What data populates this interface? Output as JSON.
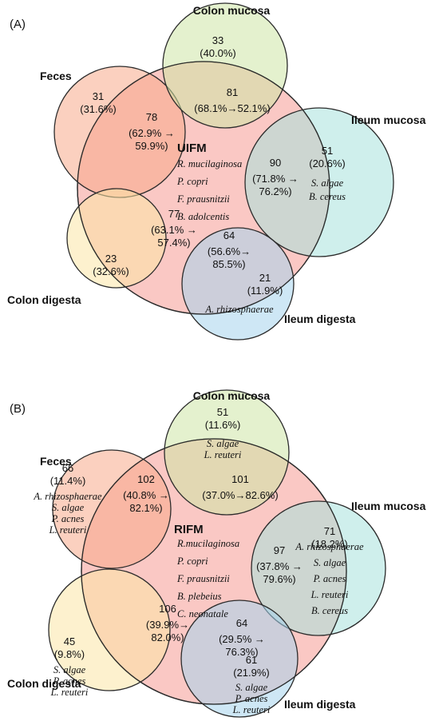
{
  "panels": [
    {
      "panel_label": "(A)",
      "core": {
        "label": "UIFM",
        "species": [
          "R. mucilaginosa",
          "P. copri",
          "F. prausnitzii",
          "B. adolcentis"
        ]
      },
      "sets": [
        {
          "name": "Feces",
          "color": "#f7a98a",
          "unique_count": "31",
          "unique_percent": "(31.6%)",
          "species": []
        },
        {
          "name": "Colon mucosa",
          "color": "#cde6a6",
          "unique_count": "33",
          "unique_percent": "(40.0%)",
          "species": []
        },
        {
          "name": "Ileum mucosa",
          "color": "#a8e2dc",
          "unique_count": "51",
          "unique_percent": "(20.6%)",
          "species": [
            "S. algae",
            "B. cereus"
          ]
        },
        {
          "name": "Ileum digesta",
          "color": "#a6d4ec",
          "unique_count": "21",
          "unique_percent": "(11.9%)",
          "species": [
            "A. rhizosphaerae"
          ]
        },
        {
          "name": "Colon digesta",
          "color": "#fbe5a5",
          "unique_count": "23",
          "unique_percent": "(32.6%)",
          "species": []
        }
      ],
      "overlaps": [
        {
          "count": "78",
          "lines": [
            "(62.9% →",
            "59.9%)"
          ]
        },
        {
          "count": "81",
          "lines": [
            "(68.1%→52.1%)"
          ]
        },
        {
          "count": "90",
          "lines": [
            "(71.8% →",
            "76.2%)"
          ]
        },
        {
          "count": "64",
          "lines": [
            "(56.6%→",
            "85.5%)"
          ]
        },
        {
          "count": "77",
          "lines": [
            "(63.1% →",
            "57.4%)"
          ]
        }
      ]
    },
    {
      "panel_label": "(B)",
      "core": {
        "label": "RIFM",
        "species": [
          "R.mucilaginosa",
          "P. copri",
          "F. prausnitzii",
          "B. plebeius",
          "C. neonatale"
        ]
      },
      "sets": [
        {
          "name": "Feces",
          "color": "#f7a98a",
          "unique_count": "66",
          "unique_percent": "(11.4%)",
          "species": [
            "A. rhizosphaerae",
            "S. algae",
            "P. acnes",
            "L. reuteri"
          ]
        },
        {
          "name": "Colon mucosa",
          "color": "#cde6a6",
          "unique_count": "51",
          "unique_percent": "(11.6%)",
          "species": [
            "S. algae",
            "L. reuteri"
          ]
        },
        {
          "name": "Ileum mucosa",
          "color": "#a8e2dc",
          "unique_count": "71",
          "unique_percent": "(18.2%)",
          "species": [
            "A. rhizosphaerae",
            "S. algae",
            "P. acnes",
            "L. reuteri",
            "B. cereus"
          ]
        },
        {
          "name": "Ileum digesta",
          "color": "#a6d4ec",
          "unique_count": "61",
          "unique_percent": "(21.9%)",
          "species": [
            "S. algae",
            "P. acnes",
            "L. reuteri"
          ]
        },
        {
          "name": "Colon digesta",
          "color": "#fbe5a5",
          "unique_count": "45",
          "unique_percent": "(9.8%)",
          "species": [
            "S. algae",
            "P. acnes",
            "L. reuteri"
          ]
        }
      ],
      "overlaps": [
        {
          "count": "102",
          "lines": [
            "(40.8% →",
            "82.1%)"
          ]
        },
        {
          "count": "101",
          "lines": [
            "(37.0%→82.6%)"
          ]
        },
        {
          "count": "97",
          "lines": [
            "(37.8% →",
            "79.6%)"
          ]
        },
        {
          "count": "64",
          "lines": [
            "(29.5% →",
            "76.3%)"
          ]
        },
        {
          "count": "106",
          "lines": [
            "(39.9%→",
            "82.0%)"
          ]
        }
      ]
    }
  ]
}
